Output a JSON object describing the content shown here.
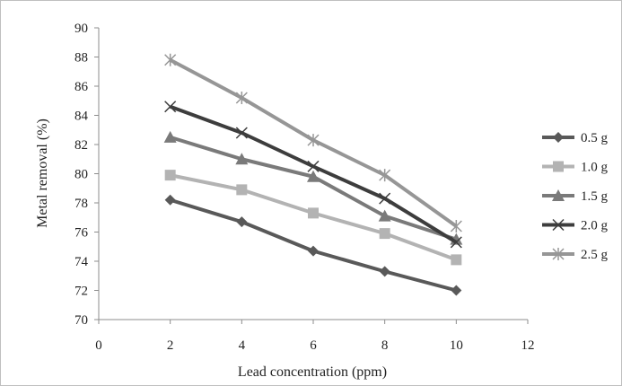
{
  "chart_data": {
    "type": "line",
    "title": "",
    "xlabel": "Lead concentration (ppm)",
    "ylabel": "Metal removal (%)",
    "xlim": [
      0,
      12
    ],
    "ylim": [
      70,
      90
    ],
    "x_ticks": [
      0,
      2,
      4,
      6,
      8,
      10,
      12
    ],
    "y_ticks": [
      70,
      72,
      74,
      76,
      78,
      80,
      82,
      84,
      86,
      88,
      90
    ],
    "x_tick_labels": [
      "0",
      "2",
      "4",
      "6",
      "8",
      "10",
      "12"
    ],
    "y_tick_labels": [
      "70",
      "72",
      "74",
      "76",
      "78",
      "80",
      "82",
      "84",
      "86",
      "88",
      "90"
    ],
    "grid": false,
    "legend_position": "right",
    "x": [
      2,
      4,
      6,
      8,
      10
    ],
    "series": [
      {
        "name": "0.5 g",
        "marker": "diamond",
        "color": "#595959",
        "values": [
          78.2,
          76.7,
          74.7,
          73.3,
          72.0
        ]
      },
      {
        "name": "1.0 g",
        "marker": "square",
        "color": "#b3b3b3",
        "values": [
          79.9,
          78.9,
          77.3,
          75.9,
          74.1
        ]
      },
      {
        "name": "1.5 g",
        "marker": "triangle",
        "color": "#7a7a7a",
        "values": [
          82.5,
          81.0,
          79.8,
          77.1,
          75.5
        ]
      },
      {
        "name": "2.0 g",
        "marker": "x",
        "color": "#3d3d3d",
        "values": [
          84.6,
          82.8,
          80.5,
          78.3,
          75.3
        ]
      },
      {
        "name": "2.5 g",
        "marker": "star",
        "color": "#969696",
        "values": [
          87.8,
          85.2,
          82.3,
          79.9,
          76.4
        ]
      }
    ]
  }
}
